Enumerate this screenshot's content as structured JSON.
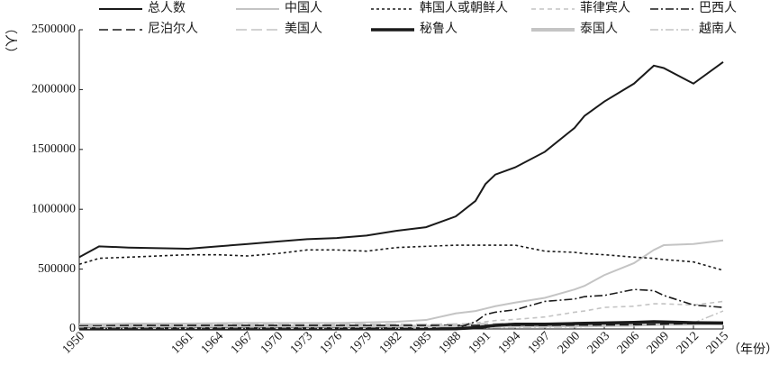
{
  "chart_data": {
    "type": "line",
    "x_label": "（年份）",
    "y_label": "（人）",
    "x": [
      1950,
      1952,
      1955,
      1961,
      1964,
      1967,
      1970,
      1973,
      1976,
      1979,
      1982,
      1985,
      1988,
      1990,
      1991,
      1992,
      1994,
      1997,
      2000,
      2001,
      2003,
      2006,
      2008,
      2009,
      2012,
      2015
    ],
    "xlim": [
      1950,
      2015
    ],
    "xticks": [
      1950,
      1961,
      1964,
      1967,
      1970,
      1973,
      1976,
      1979,
      1982,
      1985,
      1988,
      1991,
      1994,
      1997,
      2000,
      2003,
      2006,
      2009,
      2012,
      2015
    ],
    "ylim": [
      0,
      2500000
    ],
    "yticks": [
      0,
      500000,
      1000000,
      1500000,
      2000000,
      2500000
    ],
    "series": [
      {
        "name": "总人数",
        "color": "#1a1a1a",
        "values": [
          600000,
          690000,
          680000,
          670000,
          690000,
          710000,
          730000,
          750000,
          760000,
          780000,
          820000,
          850000,
          940000,
          1070000,
          1210000,
          1290000,
          1350000,
          1480000,
          1680000,
          1780000,
          1900000,
          2050000,
          2200000,
          2180000,
          2050000,
          2230000
        ]
      },
      {
        "name": "中国人",
        "color": "#c4c4c4",
        "values": [
          40000,
          40000,
          45000,
          45000,
          48000,
          50000,
          50000,
          50000,
          50000,
          55000,
          60000,
          75000,
          130000,
          150000,
          170000,
          190000,
          220000,
          260000,
          330000,
          360000,
          450000,
          550000,
          660000,
          700000,
          710000,
          740000
        ]
      },
      {
        "name": "韩国人或朝鲜人",
        "color": "#1a1a1a",
        "values": [
          540000,
          590000,
          600000,
          620000,
          620000,
          610000,
          630000,
          660000,
          660000,
          650000,
          680000,
          690000,
          700000,
          700000,
          700000,
          700000,
          700000,
          650000,
          640000,
          630000,
          620000,
          600000,
          590000,
          580000,
          560000,
          490000
        ]
      },
      {
        "name": "菲律宾人",
        "color": "#c4c4c4",
        "values": [
          5000,
          5000,
          5000,
          5000,
          5000,
          5000,
          5000,
          5000,
          5000,
          5000,
          6000,
          10000,
          30000,
          50000,
          60000,
          70000,
          80000,
          100000,
          140000,
          150000,
          180000,
          190000,
          210000,
          210000,
          200000,
          230000
        ]
      },
      {
        "name": "巴西人",
        "color": "#1a1a1a",
        "values": [
          1000,
          1000,
          1000,
          1000,
          1000,
          1000,
          1000,
          1000,
          1000,
          2000,
          2000,
          2000,
          5000,
          60000,
          120000,
          140000,
          160000,
          230000,
          250000,
          270000,
          280000,
          330000,
          320000,
          280000,
          200000,
          180000
        ]
      },
      {
        "name": "尼泊尔人",
        "color": "#1a1a1a",
        "values": [
          30000,
          30000,
          30000,
          30000,
          30000,
          30000,
          30000,
          30000,
          30000,
          30000,
          30000,
          30000,
          30000,
          30000,
          30000,
          30000,
          30000,
          30000,
          32000,
          32000,
          33000,
          35000,
          38000,
          40000,
          45000,
          55000
        ]
      },
      {
        "name": "美国人",
        "color": "#c4c4c4",
        "values": [
          40000,
          40000,
          40000,
          40000,
          40000,
          40000,
          40000,
          40000,
          40000,
          40000,
          40000,
          40000,
          42000,
          45000,
          45000,
          45000,
          45000,
          45000,
          47000,
          47000,
          48000,
          50000,
          50000,
          50000,
          50000,
          50000
        ]
      },
      {
        "name": "秘鲁人",
        "color": "#1a1a1a",
        "values": [
          1000,
          1000,
          1000,
          1000,
          1000,
          1000,
          1000,
          1000,
          1000,
          1000,
          1000,
          1000,
          2000,
          10000,
          20000,
          30000,
          40000,
          40000,
          45000,
          47000,
          50000,
          55000,
          60000,
          58000,
          52000,
          50000
        ]
      },
      {
        "name": "泰国人",
        "color": "#c4c4c4",
        "values": [
          20000,
          20000,
          20000,
          20000,
          20000,
          20000,
          20000,
          20000,
          20000,
          20000,
          20000,
          20000,
          22000,
          24000,
          25000,
          26000,
          27000,
          28000,
          30000,
          30000,
          32000,
          35000,
          40000,
          42000,
          43000,
          45000
        ]
      },
      {
        "name": "越南人",
        "color": "#c4c4c4",
        "values": [
          10000,
          10000,
          10000,
          10000,
          10000,
          10000,
          10000,
          10000,
          10000,
          10000,
          10000,
          10000,
          10000,
          10000,
          10000,
          10000,
          12000,
          14000,
          16000,
          18000,
          22000,
          28000,
          38000,
          40000,
          50000,
          150000
        ]
      }
    ]
  }
}
